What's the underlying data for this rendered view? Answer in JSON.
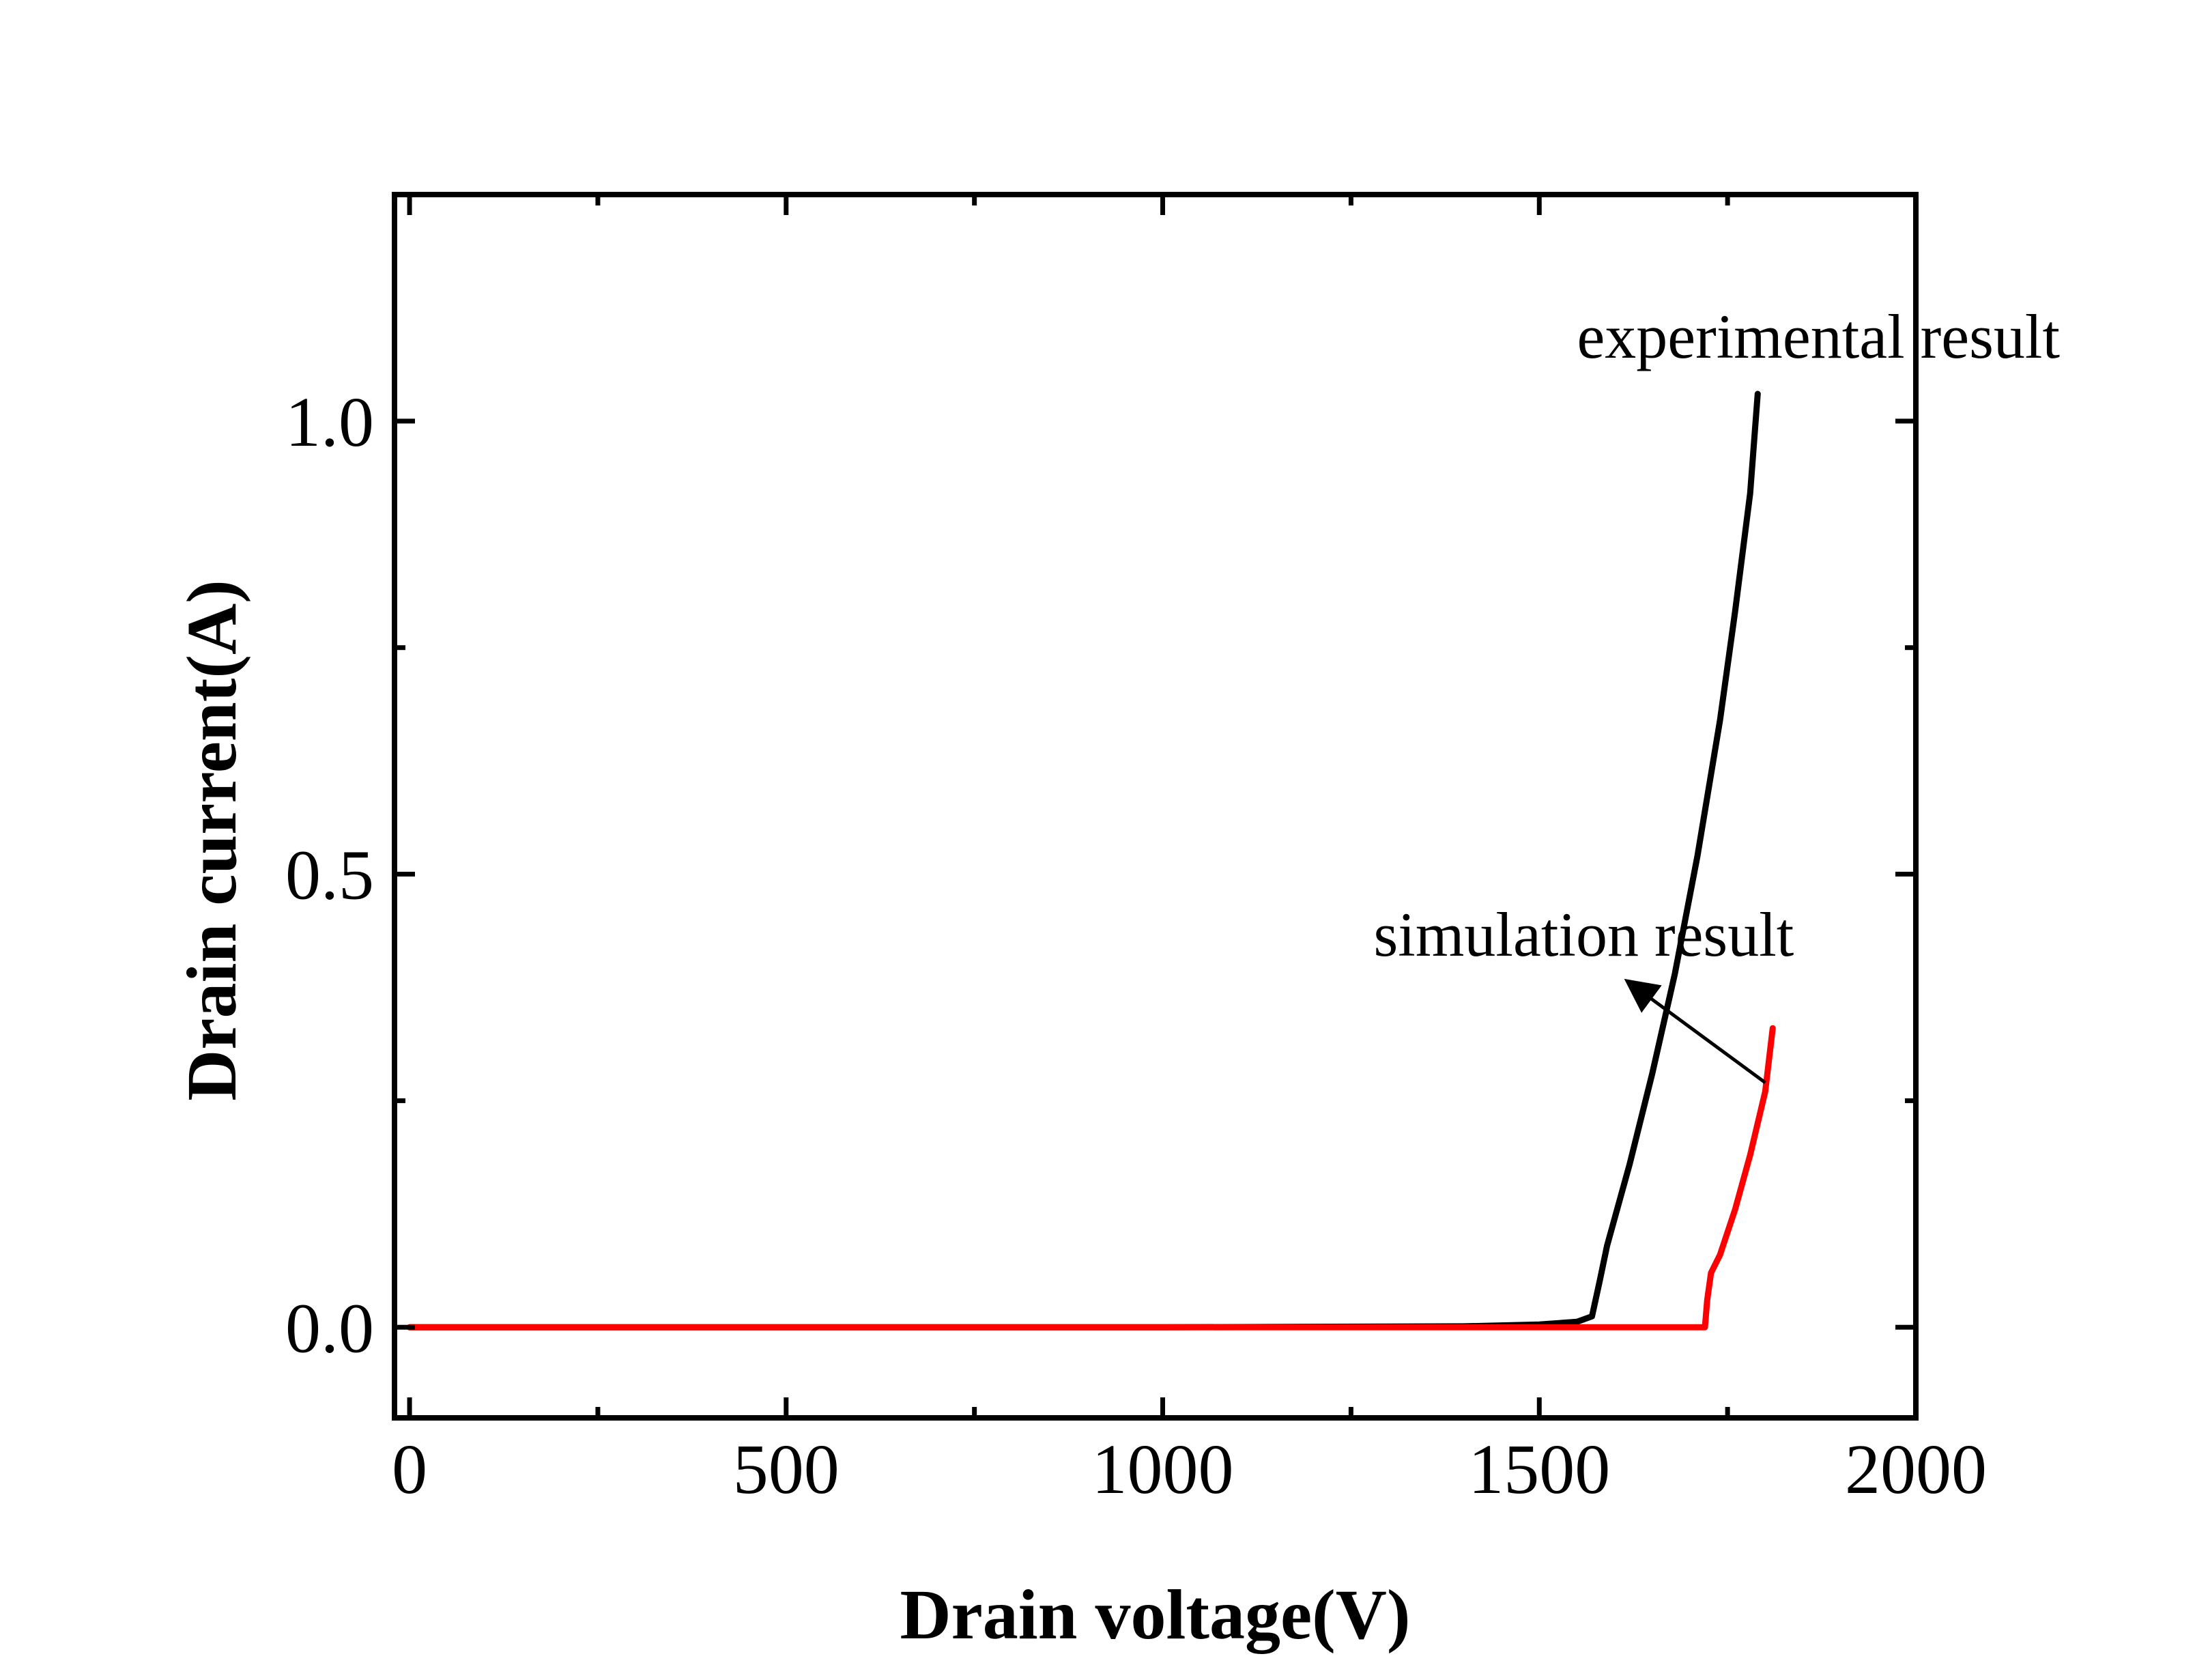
{
  "chart_data": {
    "type": "line",
    "xlabel": "Drain voltage(V)",
    "ylabel": "Drain current(A)",
    "xlim": [
      -20,
      2000
    ],
    "ylim": [
      -0.1,
      1.25
    ],
    "xticks": [
      0,
      500,
      1000,
      1500,
      2000
    ],
    "xtick_labels": [
      "0",
      "500",
      "1000",
      "1500",
      "2000"
    ],
    "yticks": [
      0.0,
      0.5,
      1.0
    ],
    "ytick_labels": [
      "0.0",
      "0.5",
      "1.0"
    ],
    "x_minor_step": 250,
    "y_minor_step": 0.25,
    "grid": false,
    "legend": "none",
    "colors": {
      "experimental": "#000000",
      "simulation": "#ff0000",
      "axes": "#000000"
    },
    "series": [
      {
        "id": "experimental",
        "color": "#000000",
        "x": [
          0,
          500,
          1000,
          1400,
          1500,
          1550,
          1570,
          1580,
          1590,
          1620,
          1650,
          1680,
          1710,
          1740,
          1760,
          1780,
          1790
        ],
        "y": [
          0,
          0,
          0,
          0.001,
          0.003,
          0.006,
          0.012,
          0.05,
          0.09,
          0.18,
          0.28,
          0.39,
          0.52,
          0.67,
          0.79,
          0.92,
          1.03
        ]
      },
      {
        "id": "simulation",
        "color": "#ff0000",
        "x": [
          0,
          500,
          1000,
          1500,
          1700,
          1720,
          1723,
          1728,
          1740,
          1760,
          1780,
          1800,
          1810
        ],
        "y": [
          0,
          0,
          0,
          0,
          0,
          0.0,
          0.03,
          0.06,
          0.08,
          0.13,
          0.19,
          0.26,
          0.33
        ]
      }
    ],
    "annotations": [
      {
        "id": "experimental-label",
        "text": "experimental result",
        "x": 1550,
        "y": 1.07
      },
      {
        "id": "simulation-label",
        "text": "simulation result",
        "x": 1280,
        "y": 0.41,
        "arrow_from": [
          1800,
          0.27
        ],
        "arrow_to": [
          1620,
          0.38
        ]
      }
    ]
  }
}
